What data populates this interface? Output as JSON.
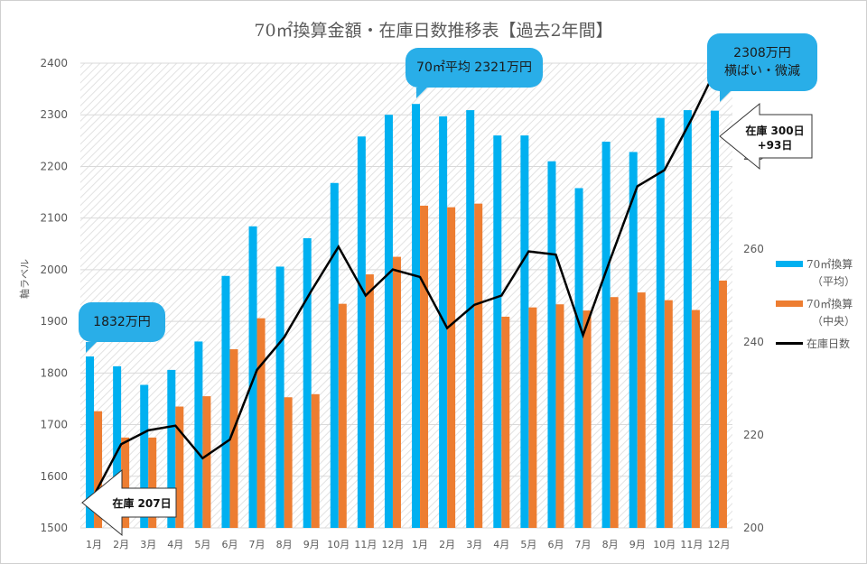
{
  "title": "70㎡換算金額・在庫日数推移表【過去2年間】",
  "y_axis_label": "軸ラベル",
  "callouts": {
    "start": "1832万円",
    "peak": "70㎡平均 2321万円",
    "end_line1": "2308万円",
    "end_line2": "横ばい・微減",
    "stock_start": "在庫 207日",
    "stock_end_line1": "在庫 300日",
    "stock_end_line2": "+93日"
  },
  "legend": {
    "avg_line1": "70㎡換算",
    "avg_line2": "（平均）",
    "median_line1": "70㎡換算",
    "median_line2": "（中央）",
    "stock": "在庫日数"
  },
  "colors": {
    "avg": "#00b0f0",
    "median": "#ed7d31",
    "stock": "#000000",
    "callout": "#29aee8"
  },
  "chart_data": {
    "type": "bar+line",
    "title": "70㎡換算金額・在庫日数推移表【過去2年間】",
    "categories": [
      "1月",
      "2月",
      "3月",
      "4月",
      "5月",
      "6月",
      "7月",
      "8月",
      "9月",
      "10月",
      "11月",
      "12月",
      "1月",
      "2月",
      "3月",
      "4月",
      "5月",
      "6月",
      "7月",
      "8月",
      "9月",
      "10月",
      "11月",
      "12月"
    ],
    "ylabel": "軸ラベル",
    "ylim": [
      1500,
      2400
    ],
    "yticks": [
      1500,
      1600,
      1700,
      1800,
      1900,
      2000,
      2100,
      2200,
      2300,
      2400
    ],
    "y2lim": [
      200,
      300
    ],
    "y2ticks": [
      200,
      220,
      240,
      260,
      280
    ],
    "grid": true,
    "legend_position": "right",
    "series": [
      {
        "name": "70㎡換算（平均）",
        "type": "bar",
        "axis": "left",
        "values": [
          1832,
          1813,
          1777,
          1806,
          1861,
          1988,
          2084,
          2006,
          2061,
          2168,
          2258,
          2300,
          2321,
          2297,
          2309,
          2260,
          2260,
          2210,
          2158,
          2248,
          2228,
          2294,
          2309,
          2308
        ]
      },
      {
        "name": "70㎡換算（中央）",
        "type": "bar",
        "axis": "left",
        "values": [
          1726,
          1675,
          1675,
          1735,
          1755,
          1846,
          1906,
          1753,
          1759,
          1934,
          1991,
          2025,
          2124,
          2121,
          2128,
          1909,
          1927,
          1933,
          1921,
          1947,
          1956,
          1941,
          1922,
          1979
        ]
      },
      {
        "name": "在庫日数",
        "type": "line",
        "axis": "right",
        "values": [
          207,
          218,
          221,
          222,
          215,
          219,
          234,
          241,
          251,
          260.5,
          250,
          255.6,
          254,
          243,
          248,
          250,
          259.5,
          258.8,
          241.5,
          257.7,
          273.5,
          277,
          288,
          300
        ]
      }
    ]
  }
}
